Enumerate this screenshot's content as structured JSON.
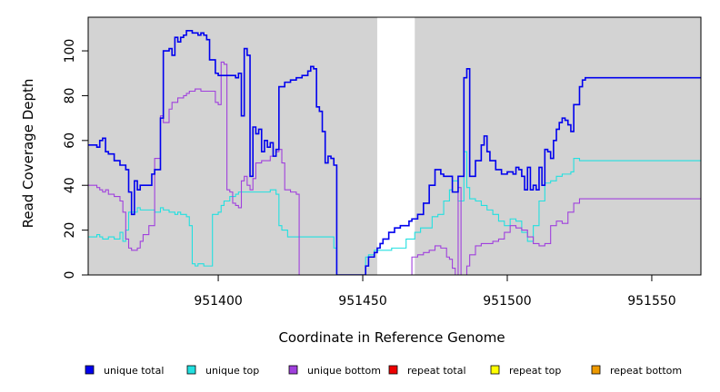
{
  "chart_data": {
    "type": "line",
    "xlabel": "Coordinate in Reference Genome",
    "ylabel": "Read Coverage Depth",
    "xlim": [
      951355,
      951567
    ],
    "ylim": [
      0,
      115
    ],
    "x_ticks": [
      951400,
      951450,
      951500,
      951550
    ],
    "y_ticks": [
      0,
      20,
      40,
      60,
      80,
      100
    ],
    "shaded_ranges": [
      [
        951355,
        951455
      ],
      [
        951468,
        951567
      ]
    ],
    "legend_position": "bottom",
    "series": [
      {
        "name": "unique total",
        "color": "#0000ee",
        "step": [
          [
            951355,
            58
          ],
          [
            951358,
            57
          ],
          [
            951359,
            60
          ],
          [
            951360,
            61
          ],
          [
            951361,
            55
          ],
          [
            951362,
            54
          ],
          [
            951364,
            51
          ],
          [
            951366,
            49
          ],
          [
            951368,
            47
          ],
          [
            951369,
            37
          ],
          [
            951370,
            27
          ],
          [
            951371,
            42
          ],
          [
            951372,
            38
          ],
          [
            951373,
            40
          ],
          [
            951377,
            45
          ],
          [
            951378,
            47
          ],
          [
            951380,
            70
          ],
          [
            951381,
            100
          ],
          [
            951383,
            101
          ],
          [
            951384,
            98
          ],
          [
            951385,
            106
          ],
          [
            951386,
            104
          ],
          [
            951387,
            106
          ],
          [
            951388,
            107
          ],
          [
            951389,
            109
          ],
          [
            951391,
            108
          ],
          [
            951392,
            108
          ],
          [
            951393,
            107
          ],
          [
            951394,
            108
          ],
          [
            951395,
            107
          ],
          [
            951396,
            105
          ],
          [
            951397,
            96
          ],
          [
            951399,
            90
          ],
          [
            951400,
            89
          ],
          [
            951403,
            89
          ],
          [
            951405,
            89
          ],
          [
            951406,
            88
          ],
          [
            951407,
            90
          ],
          [
            951408,
            71
          ],
          [
            951409,
            101
          ],
          [
            951410,
            98
          ],
          [
            951411,
            44
          ],
          [
            951412,
            66
          ],
          [
            951413,
            63
          ],
          [
            951414,
            65
          ],
          [
            951415,
            55
          ],
          [
            951416,
            60
          ],
          [
            951417,
            57
          ],
          [
            951418,
            59
          ],
          [
            951419,
            53
          ],
          [
            951420,
            56
          ],
          [
            951421,
            84
          ],
          [
            951423,
            86
          ],
          [
            951425,
            87
          ],
          [
            951427,
            88
          ],
          [
            951429,
            89
          ],
          [
            951431,
            91
          ],
          [
            951432,
            93
          ],
          [
            951433,
            92
          ],
          [
            951434,
            75
          ],
          [
            951435,
            73
          ],
          [
            951436,
            64
          ],
          [
            951437,
            50
          ],
          [
            951438,
            53
          ],
          [
            951439,
            52
          ],
          [
            951440,
            49
          ],
          [
            951441,
            0
          ],
          [
            951451,
            4
          ],
          [
            951452,
            8
          ],
          [
            951454,
            10
          ],
          [
            951455,
            12
          ],
          [
            951456,
            14
          ],
          [
            951457,
            16
          ],
          [
            951459,
            19
          ],
          [
            951461,
            21
          ],
          [
            951463,
            22
          ],
          [
            951466,
            24
          ],
          [
            951467,
            25
          ],
          [
            951469,
            27
          ],
          [
            951471,
            32
          ],
          [
            951473,
            40
          ],
          [
            951475,
            47
          ],
          [
            951477,
            45
          ],
          [
            951478,
            44
          ],
          [
            951481,
            37
          ],
          [
            951483,
            44
          ],
          [
            951485,
            88
          ],
          [
            951486,
            92
          ],
          [
            951487,
            44
          ],
          [
            951488,
            44
          ],
          [
            951489,
            51
          ],
          [
            951491,
            58
          ],
          [
            951492,
            62
          ],
          [
            951493,
            55
          ],
          [
            951494,
            51
          ],
          [
            951496,
            47
          ],
          [
            951498,
            45
          ],
          [
            951500,
            46
          ],
          [
            951502,
            45
          ],
          [
            951503,
            48
          ],
          [
            951504,
            47
          ],
          [
            951505,
            44
          ],
          [
            951506,
            38
          ],
          [
            951507,
            48
          ],
          [
            951508,
            38
          ],
          [
            951509,
            40
          ],
          [
            951510,
            38
          ],
          [
            951511,
            48
          ],
          [
            951512,
            40
          ],
          [
            951513,
            56
          ],
          [
            951514,
            55
          ],
          [
            951515,
            52
          ],
          [
            951516,
            60
          ],
          [
            951517,
            65
          ],
          [
            951518,
            68
          ],
          [
            951519,
            70
          ],
          [
            951520,
            69
          ],
          [
            951521,
            67
          ],
          [
            951522,
            64
          ],
          [
            951523,
            76
          ],
          [
            951525,
            84
          ],
          [
            951526,
            87
          ],
          [
            951527,
            88
          ]
        ]
      },
      {
        "name": "unique top",
        "color": "#22e0e0",
        "step": [
          [
            951355,
            17
          ],
          [
            951358,
            18
          ],
          [
            951359,
            17
          ],
          [
            951360,
            16
          ],
          [
            951362,
            17
          ],
          [
            951364,
            16
          ],
          [
            951366,
            19
          ],
          [
            951367,
            15
          ],
          [
            951368,
            20
          ],
          [
            951369,
            28
          ],
          [
            951370,
            28
          ],
          [
            951372,
            30
          ],
          [
            951373,
            29
          ],
          [
            951377,
            29
          ],
          [
            951378,
            28
          ],
          [
            951380,
            30
          ],
          [
            951381,
            29
          ],
          [
            951383,
            28
          ],
          [
            951385,
            27
          ],
          [
            951386,
            28
          ],
          [
            951387,
            27
          ],
          [
            951389,
            26
          ],
          [
            951390,
            22
          ],
          [
            951391,
            5
          ],
          [
            951392,
            4
          ],
          [
            951393,
            5
          ],
          [
            951395,
            4
          ],
          [
            951397,
            4
          ],
          [
            951398,
            27
          ],
          [
            951400,
            28
          ],
          [
            951401,
            31
          ],
          [
            951402,
            33
          ],
          [
            951404,
            35
          ],
          [
            951406,
            36
          ],
          [
            951407,
            37
          ],
          [
            951418,
            38
          ],
          [
            951420,
            36
          ],
          [
            951421,
            22
          ],
          [
            951422,
            20
          ],
          [
            951424,
            17
          ],
          [
            951440,
            12
          ],
          [
            951441,
            0
          ],
          [
            951451,
            8
          ],
          [
            951452,
            9
          ],
          [
            951454,
            11
          ],
          [
            951460,
            12
          ],
          [
            951465,
            16
          ],
          [
            951468,
            19
          ],
          [
            951470,
            21
          ],
          [
            951474,
            26
          ],
          [
            951476,
            27
          ],
          [
            951478,
            33
          ],
          [
            951480,
            38
          ],
          [
            951481,
            42
          ],
          [
            951483,
            33
          ],
          [
            951485,
            55
          ],
          [
            951486,
            39
          ],
          [
            951487,
            34
          ],
          [
            951489,
            33
          ],
          [
            951491,
            31
          ],
          [
            951493,
            29
          ],
          [
            951495,
            27
          ],
          [
            951497,
            24
          ],
          [
            951499,
            22
          ],
          [
            951501,
            25
          ],
          [
            951503,
            24
          ],
          [
            951505,
            19
          ],
          [
            951507,
            15
          ],
          [
            951509,
            22
          ],
          [
            951511,
            33
          ],
          [
            951513,
            41
          ],
          [
            951515,
            42
          ],
          [
            951517,
            44
          ],
          [
            951519,
            45
          ],
          [
            951522,
            46
          ],
          [
            951523,
            52
          ],
          [
            951525,
            51
          ],
          [
            951527,
            51
          ]
        ]
      },
      {
        "name": "unique bottom",
        "color": "#a040dd",
        "step": [
          [
            951355,
            40
          ],
          [
            951358,
            39
          ],
          [
            951359,
            38
          ],
          [
            951360,
            37
          ],
          [
            951361,
            38
          ],
          [
            951362,
            36
          ],
          [
            951364,
            35
          ],
          [
            951366,
            33
          ],
          [
            951367,
            28
          ],
          [
            951368,
            16
          ],
          [
            951369,
            12
          ],
          [
            951370,
            11
          ],
          [
            951372,
            12
          ],
          [
            951373,
            15
          ],
          [
            951374,
            18
          ],
          [
            951376,
            22
          ],
          [
            951378,
            52
          ],
          [
            951380,
            71
          ],
          [
            951381,
            68
          ],
          [
            951383,
            74
          ],
          [
            951384,
            77
          ],
          [
            951386,
            79
          ],
          [
            951388,
            80
          ],
          [
            951389,
            81
          ],
          [
            951390,
            82
          ],
          [
            951392,
            83
          ],
          [
            951394,
            82
          ],
          [
            951397,
            82
          ],
          [
            951399,
            77
          ],
          [
            951400,
            76
          ],
          [
            951401,
            95
          ],
          [
            951402,
            94
          ],
          [
            951403,
            38
          ],
          [
            951404,
            37
          ],
          [
            951405,
            32
          ],
          [
            951406,
            31
          ],
          [
            951407,
            30
          ],
          [
            951408,
            42
          ],
          [
            951409,
            44
          ],
          [
            951410,
            40
          ],
          [
            951411,
            38
          ],
          [
            951412,
            43
          ],
          [
            951413,
            50
          ],
          [
            951415,
            51
          ],
          [
            951418,
            53
          ],
          [
            951420,
            55
          ],
          [
            951421,
            56
          ],
          [
            951422,
            50
          ],
          [
            951423,
            38
          ],
          [
            951425,
            37
          ],
          [
            951427,
            36
          ],
          [
            951428,
            0
          ],
          [
            951466,
            0
          ],
          [
            951467,
            8
          ],
          [
            951469,
            9
          ],
          [
            951471,
            10
          ],
          [
            951473,
            11
          ],
          [
            951475,
            13
          ],
          [
            951477,
            12
          ],
          [
            951479,
            8
          ],
          [
            951480,
            7
          ],
          [
            951481,
            3
          ],
          [
            951482,
            0
          ],
          [
            951483,
            39
          ],
          [
            951484,
            0
          ],
          [
            951486,
            4
          ],
          [
            951487,
            9
          ],
          [
            951489,
            13
          ],
          [
            951491,
            14
          ],
          [
            951495,
            15
          ],
          [
            951497,
            16
          ],
          [
            951499,
            19
          ],
          [
            951501,
            22
          ],
          [
            951503,
            21
          ],
          [
            951505,
            20
          ],
          [
            951507,
            17
          ],
          [
            951509,
            14
          ],
          [
            951511,
            13
          ],
          [
            951513,
            14
          ],
          [
            951515,
            22
          ],
          [
            951517,
            24
          ],
          [
            951519,
            23
          ],
          [
            951521,
            28
          ],
          [
            951523,
            32
          ],
          [
            951525,
            34
          ],
          [
            951527,
            34
          ]
        ]
      },
      {
        "name": "repeat total",
        "color": "#ee0000",
        "step": [
          [
            951355,
            0
          ],
          [
            951567,
            0
          ]
        ]
      },
      {
        "name": "repeat top",
        "color": "#ffff00",
        "step": [
          [
            951355,
            0
          ],
          [
            951567,
            0
          ]
        ]
      },
      {
        "name": "repeat bottom",
        "color": "#ee9a00",
        "step": [
          [
            951355,
            0
          ],
          [
            951567,
            0
          ]
        ]
      }
    ]
  }
}
